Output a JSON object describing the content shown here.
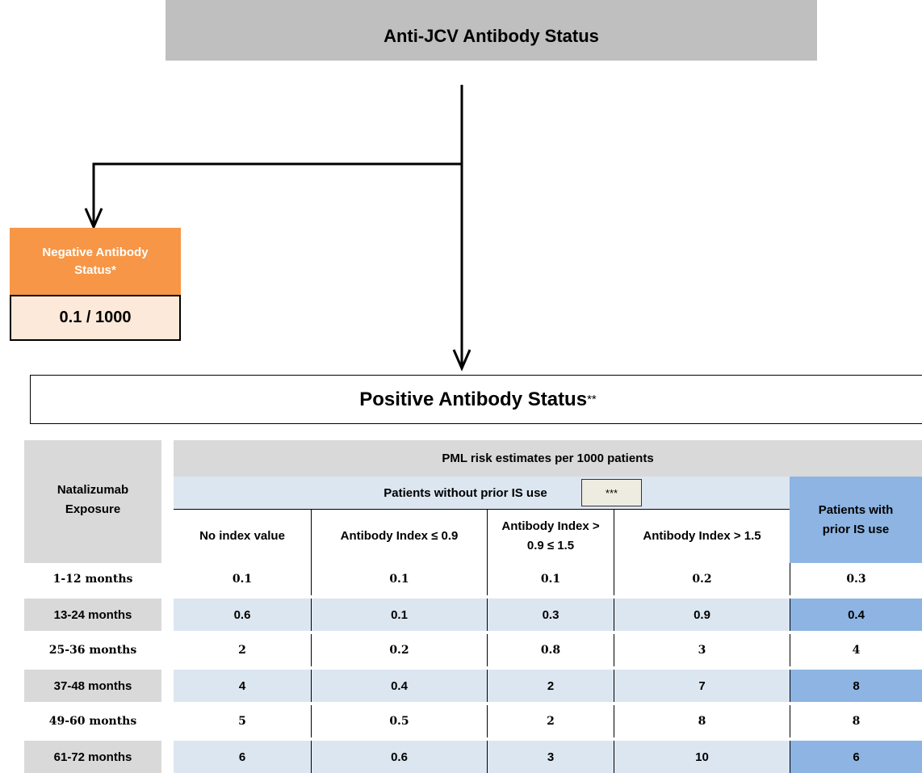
{
  "header": {
    "title": "Anti-JCV Antibody Status"
  },
  "negative": {
    "label": "Negative Antibody Status*",
    "value": "0.1 / 1000"
  },
  "positive": {
    "title": "Positive Antibody Status",
    "footnote": "**"
  },
  "table": {
    "exposure_header": "Natalizumab Exposure",
    "group_header": "PML risk estimates per 1000 patients",
    "without_header": "Patients without prior IS use",
    "without_note": "***",
    "with_header": "Patients with prior IS use",
    "columns": [
      "No index value",
      "Antibody Index ≤ 0.9",
      "Antibody Index > 0.9 ≤ 1.5",
      "Antibody Index > 1.5"
    ],
    "rows": [
      [
        "1-12 months",
        "0.1",
        "0.1",
        "0.1",
        "0.2",
        "0.3"
      ],
      [
        "13-24 months",
        "0.6",
        "0.1",
        "0.3",
        "0.9",
        "0.4"
      ],
      [
        "25-36 months",
        "2",
        "0.2",
        "0.8",
        "3",
        "4"
      ],
      [
        "37-48 months",
        "4",
        "0.4",
        "2",
        "7",
        "8"
      ],
      [
        "49-60 months",
        "5",
        "0.5",
        "2",
        "8",
        "8"
      ],
      [
        "61-72 months",
        "6",
        "0.6",
        "3",
        "10",
        "6"
      ]
    ]
  }
}
